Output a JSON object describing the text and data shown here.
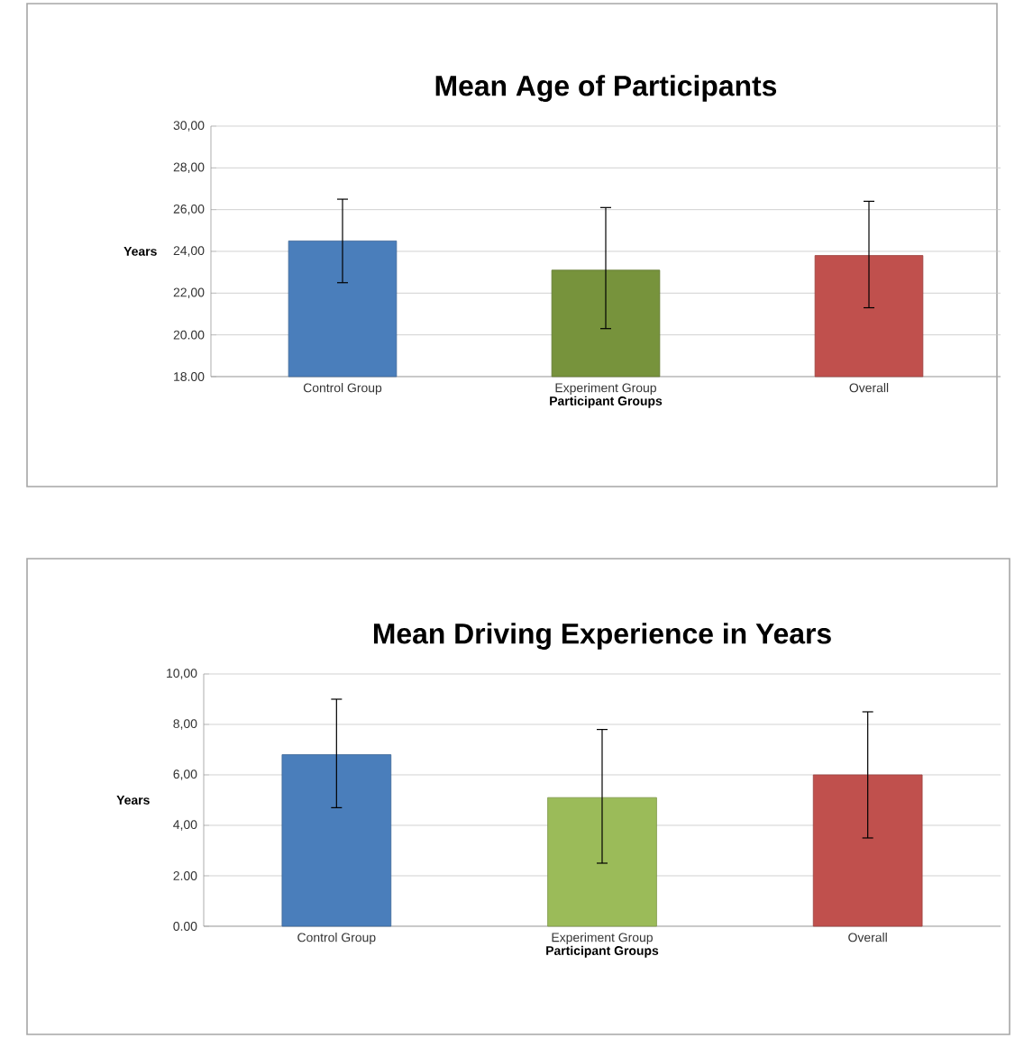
{
  "chart_data": [
    {
      "type": "bar",
      "title": "Mean Age of Participants",
      "xlabel": "Participant Groups",
      "ylabel": "Years",
      "categories": [
        "Control Group",
        "Experiment Group",
        "Overall"
      ],
      "values": [
        24.5,
        23.1,
        23.8
      ],
      "errors": [
        [
          22.5,
          26.5
        ],
        [
          20.3,
          26.1
        ],
        [
          21.3,
          26.4
        ]
      ],
      "colors": [
        "#4a7ebb",
        "#77933c",
        "#c0504d"
      ],
      "ylim": [
        18,
        30
      ],
      "yticks": [
        {
          "value": 18,
          "label": "18.00"
        },
        {
          "value": 20,
          "label": "20.00"
        },
        {
          "value": 22,
          "label": "22,00"
        },
        {
          "value": 24,
          "label": "24,00"
        },
        {
          "value": 26,
          "label": "26,00"
        },
        {
          "value": 28,
          "label": "28,00"
        },
        {
          "value": 30,
          "label": "30,00"
        }
      ],
      "grid": "y"
    },
    {
      "type": "bar",
      "title": "Mean Driving Experience in Years",
      "xlabel": "Participant Groups",
      "ylabel": "Years",
      "categories": [
        "Control Group",
        "Experiment Group",
        "Overall"
      ],
      "values": [
        6.8,
        5.1,
        6.0
      ],
      "errors": [
        [
          4.7,
          9.0
        ],
        [
          2.5,
          7.8
        ],
        [
          3.5,
          8.5
        ]
      ],
      "colors": [
        "#4a7ebb",
        "#9bbb59",
        "#c0504d"
      ],
      "ylim": [
        0,
        10
      ],
      "yticks": [
        {
          "value": 0,
          "label": "0.00"
        },
        {
          "value": 2,
          "label": "2.00"
        },
        {
          "value": 4,
          "label": "4,00"
        },
        {
          "value": 6,
          "label": "6,00"
        },
        {
          "value": 8,
          "label": "8,00"
        },
        {
          "value": 10,
          "label": "10,00"
        }
      ],
      "grid": "y"
    }
  ]
}
